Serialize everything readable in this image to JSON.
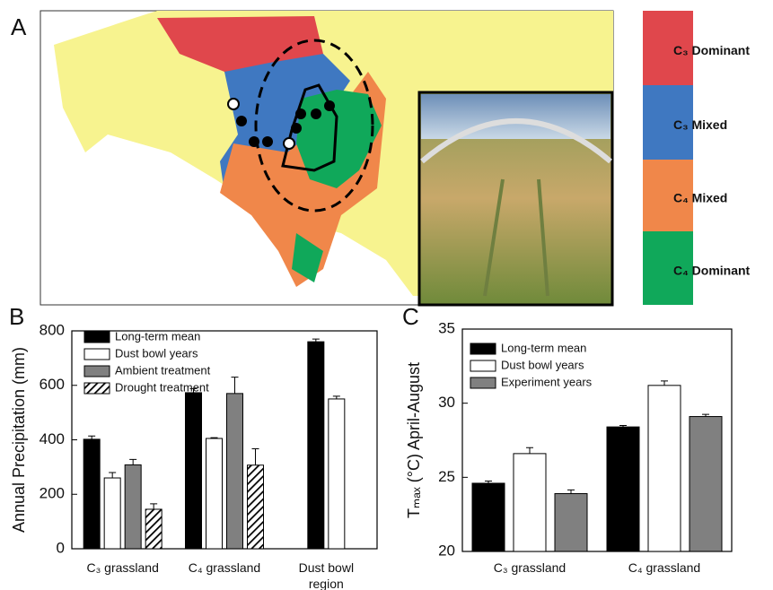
{
  "panel_labels": [
    "A",
    "B",
    "C"
  ],
  "map": {
    "legend": [
      {
        "label": "C₃ Dominant",
        "color": "#e0474c"
      },
      {
        "label": "C₃ Mixed",
        "color": "#3f78c1"
      },
      {
        "label": "C₄ Mixed",
        "color": "#f0874a"
      },
      {
        "label": "C₄ Dominant",
        "color": "#10a85a"
      }
    ]
  },
  "chart_data": [
    {
      "type": "bar",
      "y_label": "Annual Precipitation (mm)",
      "categories": [
        "C₃ grassland",
        "C₄ grassland",
        "Dust bowl region"
      ],
      "series": [
        {
          "name": "Long-term mean",
          "color": "#000000",
          "values": [
            402,
            573,
            760
          ],
          "errors": [
            12,
            15,
            10
          ]
        },
        {
          "name": "Dust bowl years",
          "color": "#ffffff",
          "values": [
            260,
            405,
            550
          ],
          "errors": [
            20,
            3,
            10
          ]
        },
        {
          "name": "Ambient treatment",
          "color": "#808080",
          "values": [
            308,
            570,
            null
          ],
          "errors": [
            20,
            60,
            null
          ]
        },
        {
          "name": "Drought treatment",
          "color": "#000000",
          "pattern": "hatch",
          "values": [
            145,
            307,
            null
          ],
          "errors": [
            20,
            60,
            null
          ]
        }
      ],
      "ylim": [
        0,
        800
      ],
      "yticks": [
        0,
        200,
        400,
        600,
        800
      ],
      "legend": "upper left"
    },
    {
      "type": "bar",
      "y_label": "Tₘₐₓ (°C) April-August",
      "categories": [
        "C₃ grassland",
        "C₄ grassland"
      ],
      "series": [
        {
          "name": "Long-term mean",
          "color": "#000000",
          "values": [
            24.6,
            28.4
          ],
          "errors": [
            0.15,
            0.1
          ]
        },
        {
          "name": "Dust bowl years",
          "color": "#ffffff",
          "values": [
            26.6,
            31.2
          ],
          "errors": [
            0.4,
            0.3
          ]
        },
        {
          "name": "Experiment years",
          "color": "#808080",
          "values": [
            23.9,
            29.1
          ],
          "errors": [
            0.25,
            0.15
          ]
        }
      ],
      "ylim": [
        20,
        35
      ],
      "yticks": [
        20,
        25,
        30,
        35
      ],
      "legend": "upper left"
    }
  ]
}
